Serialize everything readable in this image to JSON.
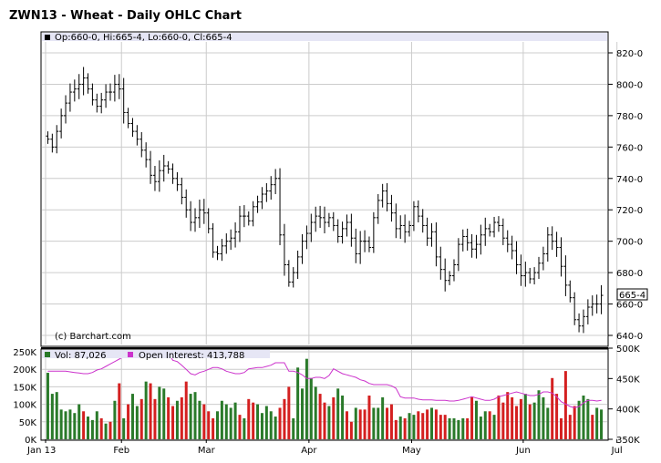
{
  "title": "ZWN13 - Wheat - Daily OHLC Chart",
  "price_legend": "Op:660-0, Hi:665-4, Lo:660-0, Cl:665-4",
  "last_price_label": "665-4",
  "watermark": "(c) Barchart.com",
  "volume_legend": "Vol: 87,026",
  "oi_legend": "Open Interest: 413,788",
  "colors": {
    "up": "#2a7a2a",
    "down": "#d42020",
    "oi_line": "#cc33cc",
    "legend_bg": "#e6e6f5",
    "grid": "#cccccc"
  },
  "chart_data": [
    {
      "type": "ohlc",
      "title": "ZWN13 - Wheat - Daily OHLC Chart",
      "ylim": [
        628,
        828
      ],
      "y_ticks": [
        "640-0",
        "660-0",
        "680-0",
        "700-0",
        "720-0",
        "740-0",
        "760-0",
        "780-0",
        "800-0",
        "820-0"
      ],
      "y_tick_values": [
        640,
        660,
        680,
        700,
        720,
        740,
        760,
        780,
        800,
        820
      ],
      "x_labels": [
        "Jan 13",
        "Feb",
        "Mar",
        "Apr",
        "May",
        "Jun",
        "Jul"
      ],
      "x_label_index": [
        0,
        17,
        36,
        59,
        82,
        107,
        128
      ],
      "closes": [
        765,
        760,
        770,
        780,
        788,
        795,
        797,
        800,
        804,
        797,
        790,
        786,
        790,
        795,
        795,
        800,
        797,
        782,
        775,
        770,
        765,
        758,
        752,
        742,
        738,
        745,
        748,
        746,
        740,
        736,
        728,
        720,
        712,
        715,
        720,
        718,
        708,
        693,
        692,
        697,
        700,
        702,
        706,
        716,
        716,
        713,
        722,
        725,
        730,
        732,
        736,
        740,
        704,
        685,
        674,
        680,
        690,
        700,
        705,
        712,
        716,
        715,
        712,
        715,
        710,
        703,
        708,
        712,
        702,
        692,
        700,
        700,
        696,
        715,
        726,
        732,
        724,
        718,
        708,
        710,
        706,
        710,
        722,
        716,
        710,
        702,
        706,
        690,
        682,
        675,
        678,
        685,
        698,
        703,
        699,
        695,
        698,
        704,
        708,
        706,
        712,
        710,
        702,
        698,
        694,
        685,
        678,
        680,
        676,
        680,
        686,
        692,
        704,
        700,
        696,
        684,
        672,
        664,
        650,
        646,
        652,
        658,
        660,
        660,
        665.5
      ],
      "ohlc_note": "high/low/open derived per bar in script from close",
      "volume": {
        "ylim": [
          0,
          250
        ],
        "y_ticks": [
          "0K",
          "50K",
          "100K",
          "150K",
          "200K",
          "250K"
        ],
        "y_tick_values": [
          0,
          50,
          100,
          150,
          200,
          250
        ],
        "values": [
          190,
          130,
          135,
          85,
          80,
          85,
          75,
          100,
          80,
          65,
          55,
          80,
          60,
          45,
          50,
          110,
          160,
          60,
          100,
          130,
          95,
          115,
          165,
          160,
          115,
          150,
          145,
          120,
          95,
          110,
          120,
          165,
          130,
          135,
          110,
          100,
          80,
          60,
          80,
          110,
          100,
          90,
          105,
          70,
          60,
          115,
          105,
          100,
          75,
          95,
          80,
          65,
          90,
          115,
          150,
          60,
          205,
          145,
          230,
          175,
          150,
          130,
          105,
          95,
          120,
          145,
          125,
          80,
          50,
          90,
          85,
          85,
          125,
          90,
          90,
          120,
          90,
          100,
          55,
          65,
          60,
          75,
          70,
          80,
          75,
          85,
          90,
          85,
          70,
          70,
          60,
          60,
          55,
          60,
          60,
          120,
          110,
          65,
          80,
          80,
          70,
          125,
          105,
          135,
          120,
          95,
          115,
          130,
          100,
          105,
          140,
          120,
          90,
          175,
          130,
          60,
          195,
          70,
          95,
          110,
          125,
          115,
          70,
          90,
          85
        ],
        "up_flags": [
          1,
          1,
          1,
          1,
          1,
          1,
          1,
          1,
          0,
          1,
          1,
          1,
          0,
          1,
          0,
          1,
          0,
          1,
          0,
          1,
          1,
          0,
          1,
          0,
          0,
          1,
          1,
          0,
          0,
          1,
          0,
          0,
          1,
          1,
          1,
          0,
          0,
          0,
          1,
          1,
          1,
          1,
          1,
          0,
          1,
          0,
          0,
          1,
          1,
          1,
          1,
          1,
          0,
          0,
          0,
          1,
          1,
          1,
          1,
          1,
          1,
          0,
          0,
          1,
          0,
          1,
          1,
          0,
          0,
          1,
          0,
          0,
          0,
          1,
          1,
          1,
          0,
          0,
          0,
          1,
          0,
          1,
          1,
          0,
          0,
          0,
          1,
          0,
          0,
          0,
          1,
          1,
          1,
          1,
          0,
          0,
          1,
          1,
          1,
          0,
          1,
          0,
          0,
          0,
          0,
          0,
          0,
          1,
          0,
          1,
          1,
          1,
          1,
          0,
          0,
          0,
          0,
          0,
          0,
          1,
          1,
          1,
          0,
          1,
          1
        ]
      },
      "open_interest": {
        "ylim": [
          350,
          500
        ],
        "y_ticks": [
          "350K",
          "400K",
          "450K",
          "500K"
        ],
        "y_tick_values": [
          350,
          400,
          450,
          500
        ],
        "values": [
          462,
          462,
          462,
          462,
          462,
          461,
          460,
          459,
          458,
          458,
          460,
          464,
          466,
          470,
          474,
          478,
          482,
          486,
          485,
          485,
          486,
          488,
          489,
          490,
          491,
          492,
          493,
          492,
          480,
          478,
          472,
          465,
          458,
          456,
          460,
          462,
          465,
          468,
          468,
          466,
          462,
          460,
          458,
          458,
          460,
          466,
          467,
          468,
          468,
          470,
          472,
          476,
          476,
          476,
          462,
          462,
          460,
          456,
          450,
          450,
          452,
          452,
          450,
          455,
          466,
          462,
          458,
          456,
          454,
          452,
          448,
          446,
          442,
          440,
          440,
          440,
          440,
          438,
          434,
          420,
          418,
          418,
          418,
          416,
          415,
          415,
          415,
          414,
          414,
          414,
          413,
          413,
          414,
          416,
          418,
          420,
          418,
          416,
          414,
          414,
          416,
          420,
          422,
          424,
          426,
          428,
          426,
          424,
          422,
          422,
          424,
          428,
          428,
          426,
          420,
          412,
          408,
          404,
          402,
          404,
          410,
          414,
          414,
          413,
          414
        ]
      }
    }
  ]
}
